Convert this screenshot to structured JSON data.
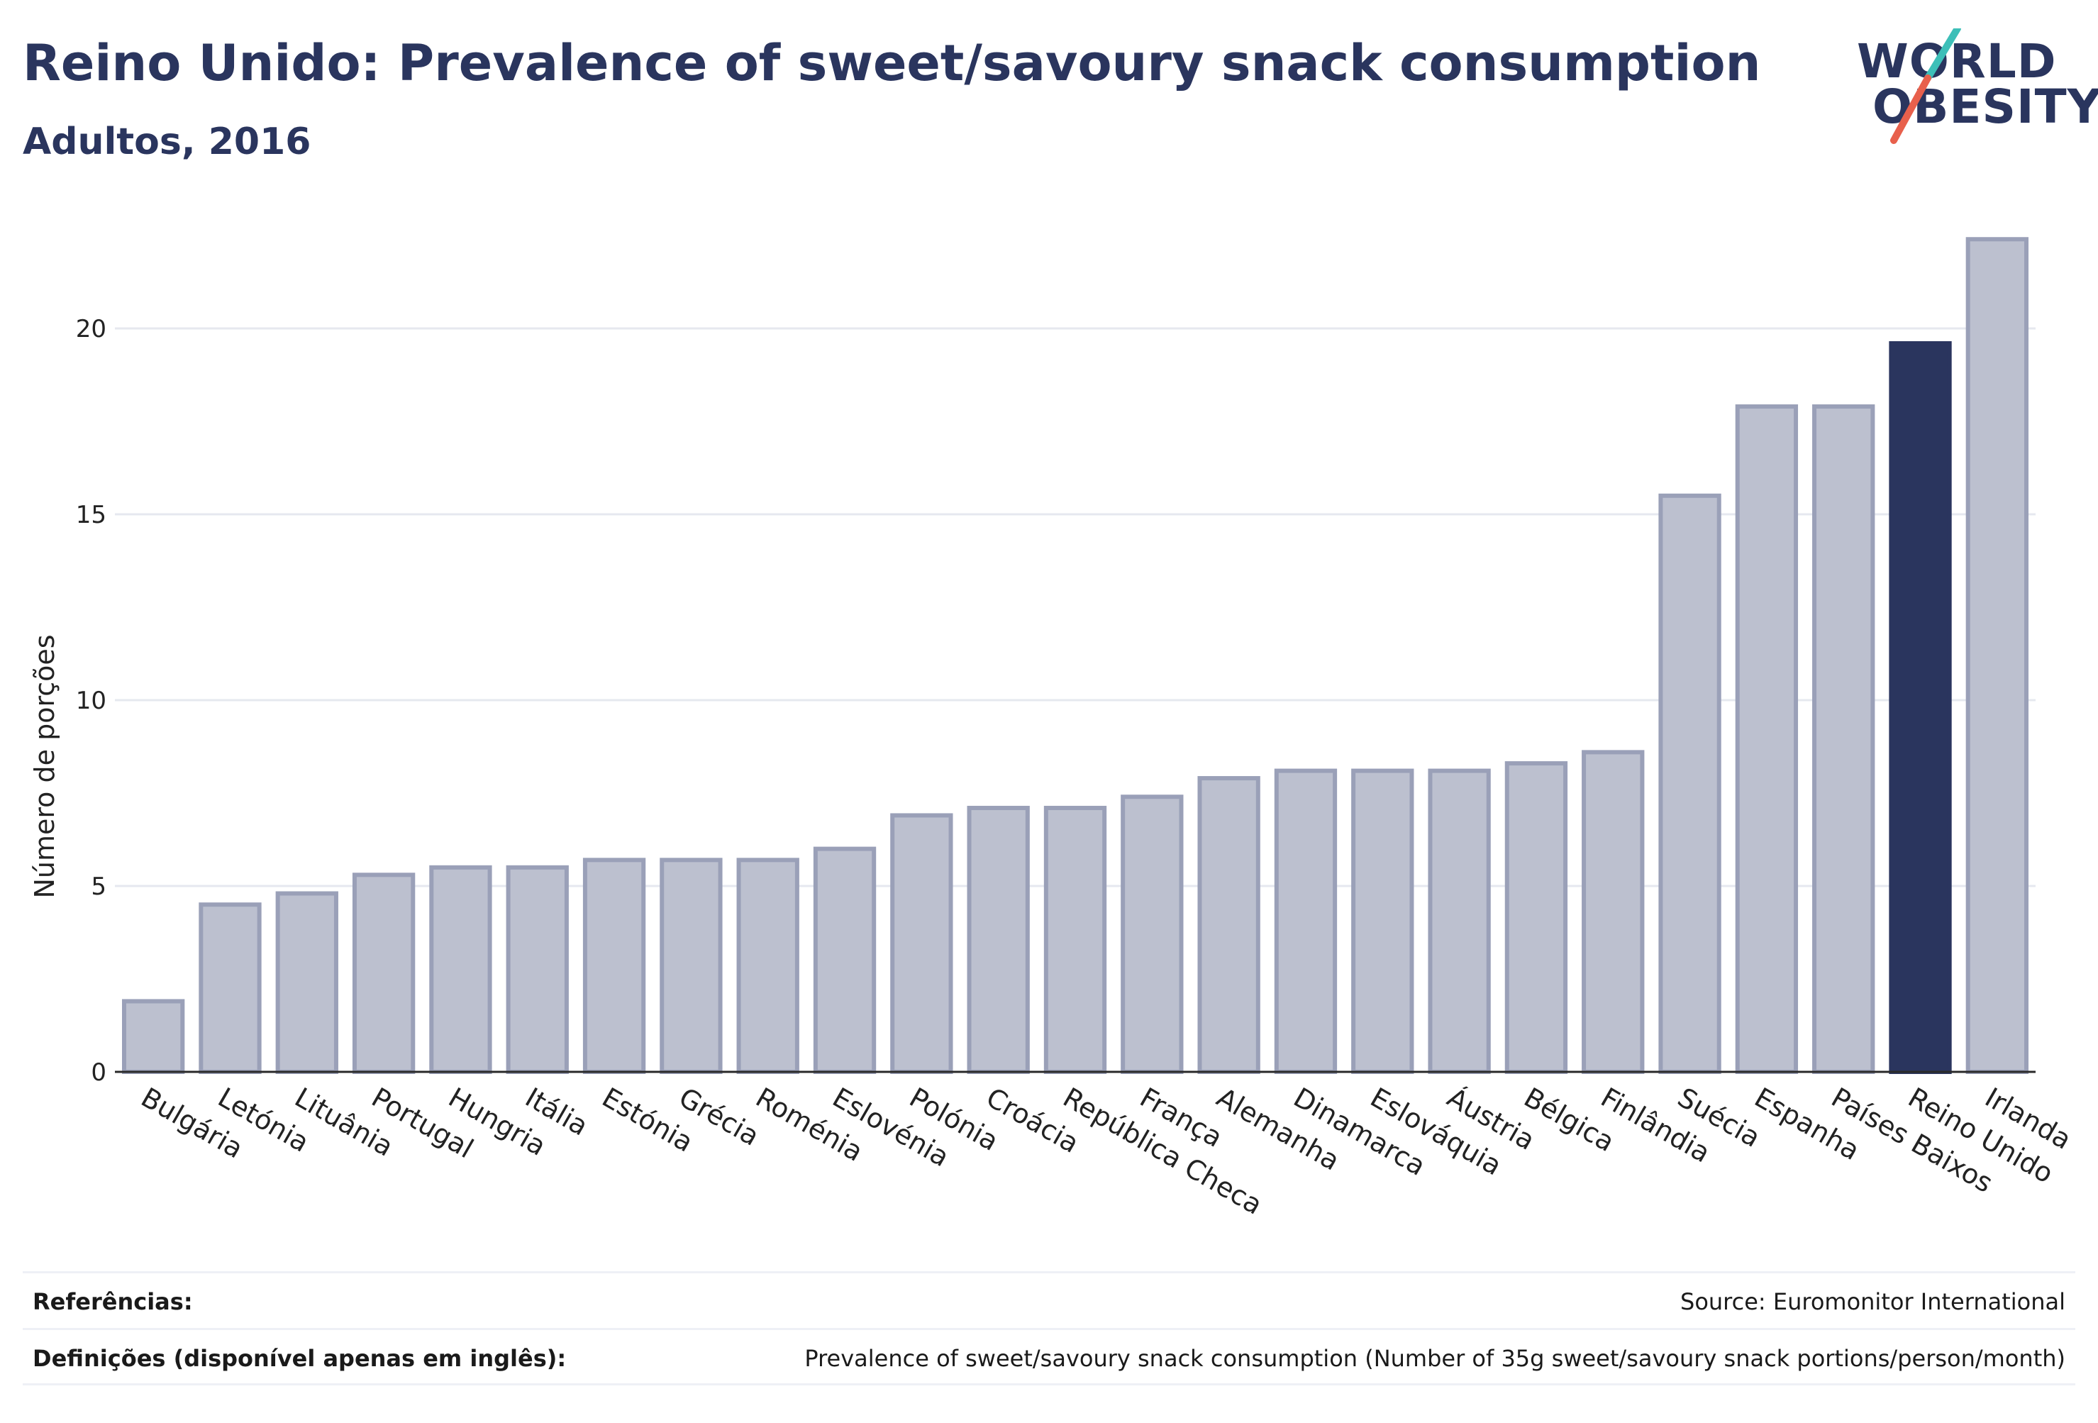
{
  "header": {
    "title": "Reino Unido: Prevalence of sweet/savoury snack consumption",
    "subtitle": "Adultos, 2016"
  },
  "logo": {
    "line1": "WORLD",
    "line2": "OBESITY",
    "accent_teal": "#3dbfb8",
    "accent_red": "#e8604c"
  },
  "footer": {
    "references_label": "Referências:",
    "references_value": "Source: Euromonitor International",
    "definitions_label": "Definições (disponível apenas em inglês):",
    "definitions_value": "Prevalence of sweet/savoury snack consumption (Number of 35g sweet/savoury snack portions/person/month)"
  },
  "colors": {
    "bar": "#bcc0cf",
    "bar_border": "#9aa0b8",
    "highlight": "#2a355e",
    "grid": "#e6e8ef",
    "axis": "#2a2a2a"
  },
  "chart_data": {
    "type": "bar",
    "ylabel": "Número de porções",
    "xlabel": "",
    "ylim": [
      0,
      23
    ],
    "yticks": [
      0,
      5,
      10,
      15,
      20
    ],
    "grid": true,
    "highlight": "Reino Unido",
    "categories": [
      "Bulgária",
      "Letónia",
      "Lituânia",
      "Portugal",
      "Hungria",
      "Itália",
      "Estónia",
      "Grécia",
      "Roménia",
      "Eslovénia",
      "Polónia",
      "Croácia",
      "República Checa",
      "França",
      "Alemanha",
      "Dinamarca",
      "Eslováquia",
      "Áustria",
      "Bélgica",
      "Finlândia",
      "Suécia",
      "Espanha",
      "Países Baixos",
      "Reino Unido",
      "Irlanda"
    ],
    "values": [
      1.9,
      4.5,
      4.8,
      5.3,
      5.5,
      5.5,
      5.7,
      5.7,
      5.7,
      6.0,
      6.9,
      7.1,
      7.1,
      7.4,
      7.9,
      8.1,
      8.1,
      8.1,
      8.3,
      8.6,
      15.5,
      17.9,
      17.9,
      19.6,
      22.4
    ]
  }
}
